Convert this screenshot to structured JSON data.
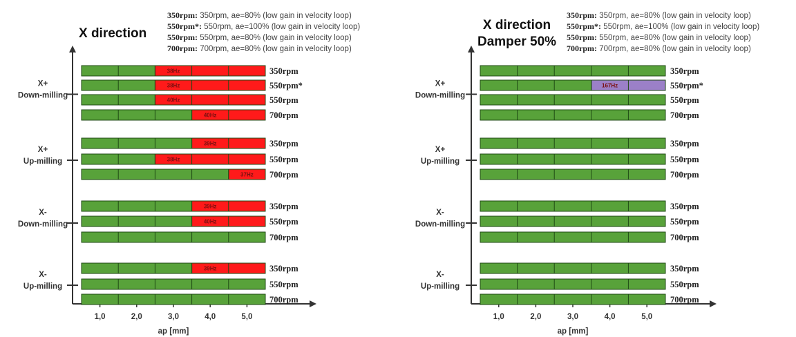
{
  "chart_data": [
    {
      "type": "bar",
      "title": "X direction",
      "title_line2": "",
      "xlabel": "ap [mm]",
      "xticks": [
        "1,0",
        "2,0",
        "3,0",
        "4,0",
        "5,0"
      ],
      "xlim": [
        0.5,
        5.5
      ],
      "legend": [
        {
          "key": "350rpm:",
          "text": " 350rpm, ae=80% (low gain in velocity loop)"
        },
        {
          "key": "550rpm*:",
          "text": " 550rpm, ae=100% (low gain in velocity loop)"
        },
        {
          "key": "550rpm:",
          "text": " 550rpm, ae=80% (low gain in velocity loop)"
        },
        {
          "key": "700rpm:",
          "text": " 700rpm, ae=80% (low gain in velocity loop)"
        }
      ],
      "groups": [
        {
          "label": [
            "X+",
            "Down-milling"
          ],
          "rows": [
            {
              "name": "350rpm",
              "unstable_from": 2.5,
              "color": "#ff1a1a",
              "label": "38Hz"
            },
            {
              "name": "550rpm*",
              "unstable_from": 2.5,
              "color": "#ff1a1a",
              "label": "38Hz"
            },
            {
              "name": "550rpm",
              "unstable_from": 2.5,
              "color": "#ff1a1a",
              "label": "40Hz"
            },
            {
              "name": "700rpm",
              "unstable_from": 3.5,
              "color": "#ff1a1a",
              "label": "40Hz"
            }
          ]
        },
        {
          "label": [
            "X+",
            "Up-milling"
          ],
          "rows": [
            {
              "name": "350rpm",
              "unstable_from": 3.5,
              "color": "#ff1a1a",
              "label": "39Hz"
            },
            {
              "name": "550rpm",
              "unstable_from": 2.5,
              "color": "#ff1a1a",
              "label": "38Hz"
            },
            {
              "name": "700rpm",
              "unstable_from": 4.5,
              "color": "#ff1a1a",
              "label": "37Hz"
            }
          ]
        },
        {
          "label": [
            "X-",
            "Down-milling"
          ],
          "rows": [
            {
              "name": "350rpm",
              "unstable_from": 3.5,
              "color": "#ff1a1a",
              "label": "39Hz"
            },
            {
              "name": "550rpm",
              "unstable_from": 3.5,
              "color": "#ff1a1a",
              "label": "40Hz"
            },
            {
              "name": "700rpm",
              "unstable_from": null,
              "color": "",
              "label": ""
            }
          ]
        },
        {
          "label": [
            "X-",
            "Up-milling"
          ],
          "rows": [
            {
              "name": "350rpm",
              "unstable_from": 3.5,
              "color": "#ff1a1a",
              "label": "39Hz"
            },
            {
              "name": "550rpm",
              "unstable_from": null,
              "color": "",
              "label": ""
            },
            {
              "name": "700rpm",
              "unstable_from": null,
              "color": "",
              "label": ""
            }
          ]
        }
      ]
    },
    {
      "type": "bar",
      "title": "X direction",
      "title_line2": "Damper 50%",
      "xlabel": "ap [mm]",
      "xticks": [
        "1,0",
        "2,0",
        "3,0",
        "4,0",
        "5,0"
      ],
      "xlim": [
        0.5,
        5.5
      ],
      "legend": [
        {
          "key": "350rpm:",
          "text": " 350rpm, ae=80% (low gain in velocity loop)"
        },
        {
          "key": "550rpm*:",
          "text": " 550rpm, ae=100% (low gain in velocity loop)"
        },
        {
          "key": "550rpm:",
          "text": " 550rpm, ae=80% (low gain in velocity loop)"
        },
        {
          "key": "700rpm:",
          "text": " 700rpm, ae=80% (low gain in velocity loop)"
        }
      ],
      "groups": [
        {
          "label": [
            "X+",
            "Down-milling"
          ],
          "rows": [
            {
              "name": "350rpm",
              "unstable_from": null,
              "color": "",
              "label": ""
            },
            {
              "name": "550rpm*",
              "unstable_from": 3.5,
              "color": "#9b80c8",
              "label": "167Hz"
            },
            {
              "name": "550rpm",
              "unstable_from": null,
              "color": "",
              "label": ""
            },
            {
              "name": "700rpm",
              "unstable_from": null,
              "color": "",
              "label": ""
            }
          ]
        },
        {
          "label": [
            "X+",
            "Up-milling"
          ],
          "rows": [
            {
              "name": "350rpm",
              "unstable_from": null,
              "color": "",
              "label": ""
            },
            {
              "name": "550rpm",
              "unstable_from": null,
              "color": "",
              "label": ""
            },
            {
              "name": "700rpm",
              "unstable_from": null,
              "color": "",
              "label": ""
            }
          ]
        },
        {
          "label": [
            "X-",
            "Down-milling"
          ],
          "rows": [
            {
              "name": "350rpm",
              "unstable_from": null,
              "color": "",
              "label": ""
            },
            {
              "name": "550rpm",
              "unstable_from": null,
              "color": "",
              "label": ""
            },
            {
              "name": "700rpm",
              "unstable_from": null,
              "color": "",
              "label": ""
            }
          ]
        },
        {
          "label": [
            "X-",
            "Up-milling"
          ],
          "rows": [
            {
              "name": "350rpm",
              "unstable_from": null,
              "color": "",
              "label": ""
            },
            {
              "name": "550rpm",
              "unstable_from": null,
              "color": "",
              "label": ""
            },
            {
              "name": "700rpm",
              "unstable_from": null,
              "color": "",
              "label": ""
            }
          ]
        }
      ]
    }
  ],
  "colors": {
    "stable": "#58a23a",
    "stable_stroke": "#1f4a14",
    "axis": "#333333"
  }
}
